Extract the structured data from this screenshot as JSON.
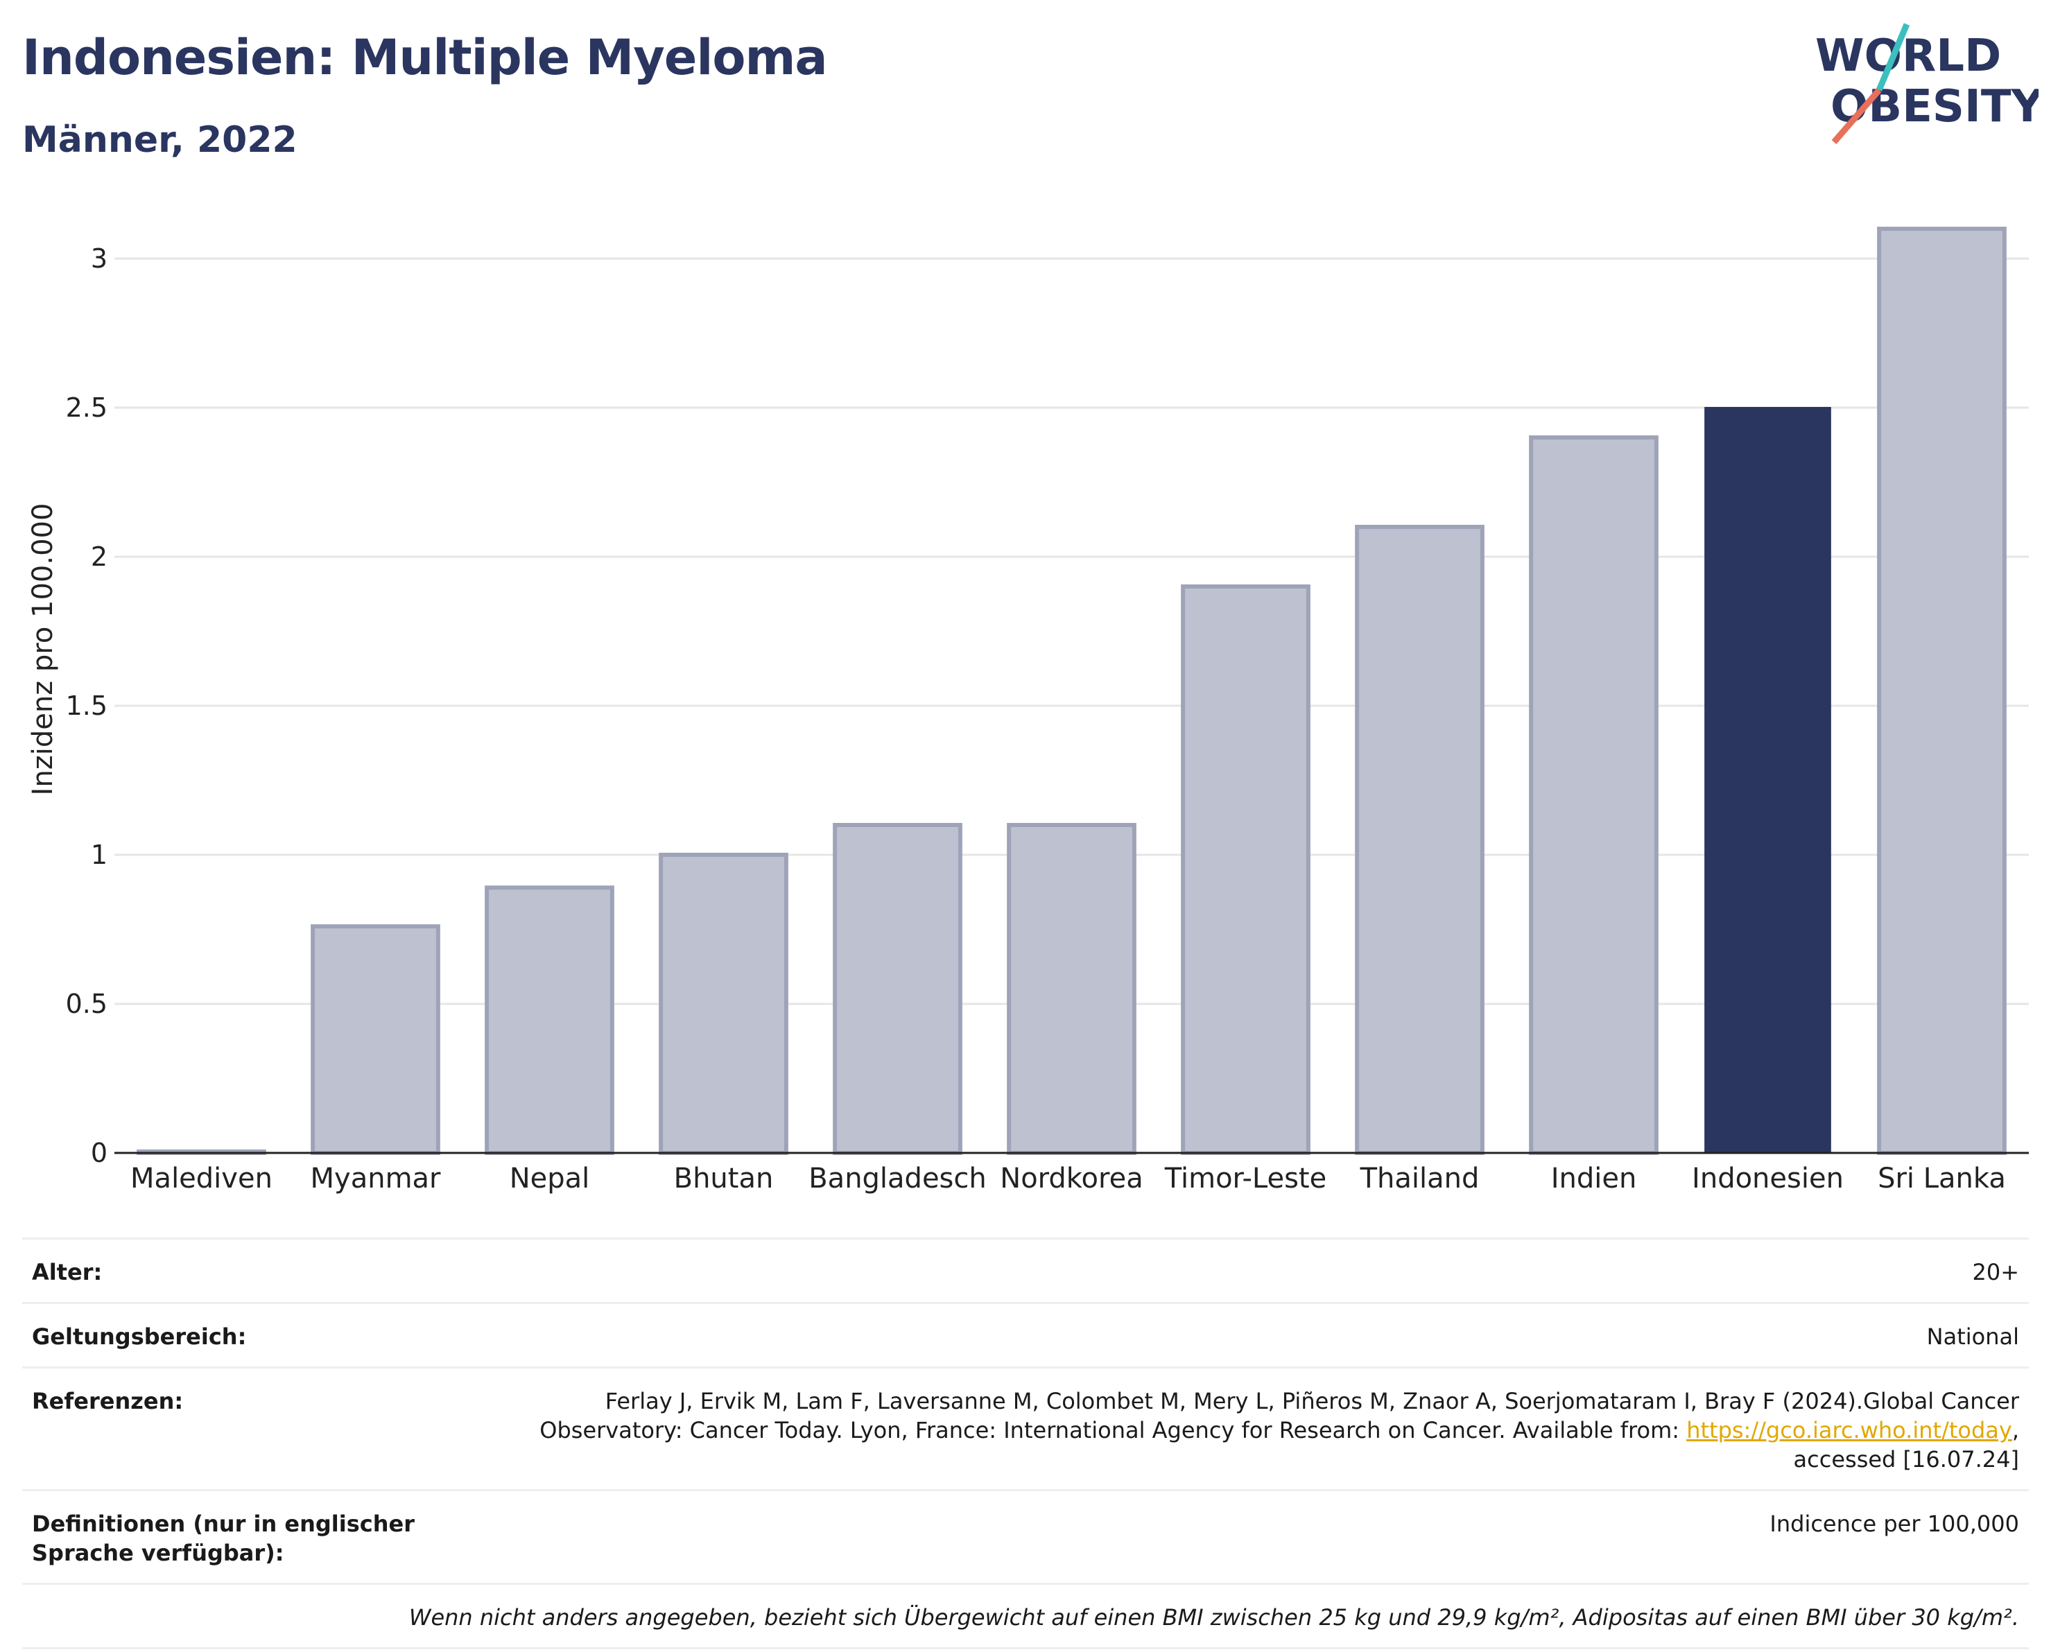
{
  "header": {
    "title": "Indonesien: Multiple Myeloma",
    "subtitle": "Männer, 2022",
    "logo_line1": "WORLD",
    "logo_line2": "OBESITY"
  },
  "colors": {
    "title": "#2a3560",
    "bar_default": "#bec2d0",
    "bar_default_stroke": "#9ea3b8",
    "bar_highlight": "#2a3560",
    "grid": "#e6e6e6",
    "axis": "#222222",
    "logo_teal": "#3bbfbf",
    "logo_coral": "#e8705a",
    "link": "#e0a800"
  },
  "chart_data": {
    "type": "bar",
    "title": "Indonesien: Multiple Myeloma",
    "subtitle": "Männer, 2022",
    "xlabel": "",
    "ylabel": "Inzidenz pro 100.000",
    "ylim": [
      0,
      3.1
    ],
    "yticks": [
      0,
      0.5,
      1,
      1.5,
      2,
      2.5,
      3
    ],
    "ytick_labels": [
      "0",
      "0.5",
      "1",
      "1.5",
      "2",
      "2.5",
      "3"
    ],
    "grid": true,
    "categories": [
      "Malediven",
      "Myanmar",
      "Nepal",
      "Bhutan",
      "Bangladesch",
      "Nordkorea",
      "Timor-Leste",
      "Thailand",
      "Indien",
      "Indonesien",
      "Sri Lanka"
    ],
    "values": [
      0,
      0.76,
      0.89,
      1.0,
      1.1,
      1.1,
      1.9,
      2.1,
      2.4,
      2.5,
      3.1
    ],
    "highlight": "Indonesien"
  },
  "meta": {
    "rows": [
      {
        "label": "Alter:",
        "value": "20+"
      },
      {
        "label": "Geltungsbereich:",
        "value": "National"
      },
      {
        "label": "Referenzen:",
        "value_pre": "Ferlay J, Ervik M, Lam F, Laversanne M, Colombet M, Mery L, Piñeros M, Znaor A, Soerjomataram I, Bray F (2024).Global Cancer Observatory: Cancer Today. Lyon, France: International Agency for Research on Cancer. Available from: ",
        "link": "https://gco.iarc.who.int/today",
        "value_post": ", accessed [16.07.24]"
      },
      {
        "label": "Definitionen (nur in englischer Sprache verfügbar):",
        "value": "Indicence per 100,000"
      }
    ],
    "note": "Wenn nicht anders angegeben, bezieht sich Übergewicht auf einen BMI zwischen 25 kg und 29,9 kg/m², Adipositas auf einen BMI über 30 kg/m²."
  }
}
